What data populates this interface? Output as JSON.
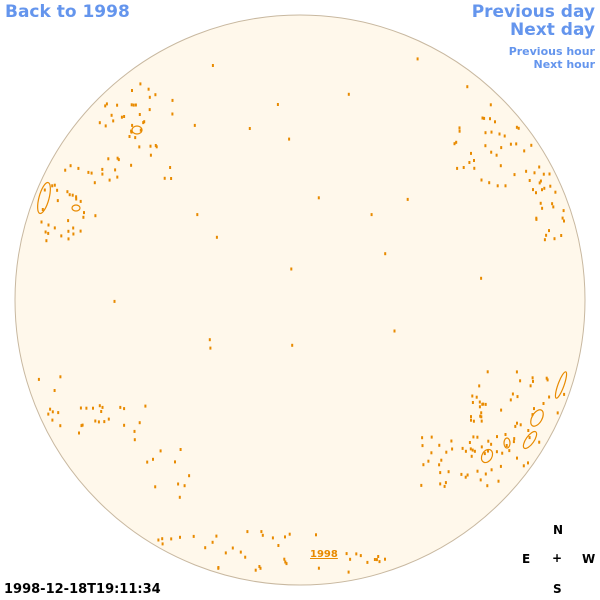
{
  "nav": {
    "back": "Back to 1998",
    "previous_day": "Previous day",
    "next_day": "Next day",
    "previous_hour": "Previous hour",
    "next_hour": "Next hour"
  },
  "disk": {
    "fill_color": "#fff8eb",
    "border_color": "#c8b8a0",
    "feature_color": "#e88a00"
  },
  "year_link": "1998",
  "compass": {
    "n": "N",
    "e": "E",
    "center": "+",
    "w": "W",
    "s": "S"
  },
  "timestamp": "1998-12-18T19:11:34"
}
